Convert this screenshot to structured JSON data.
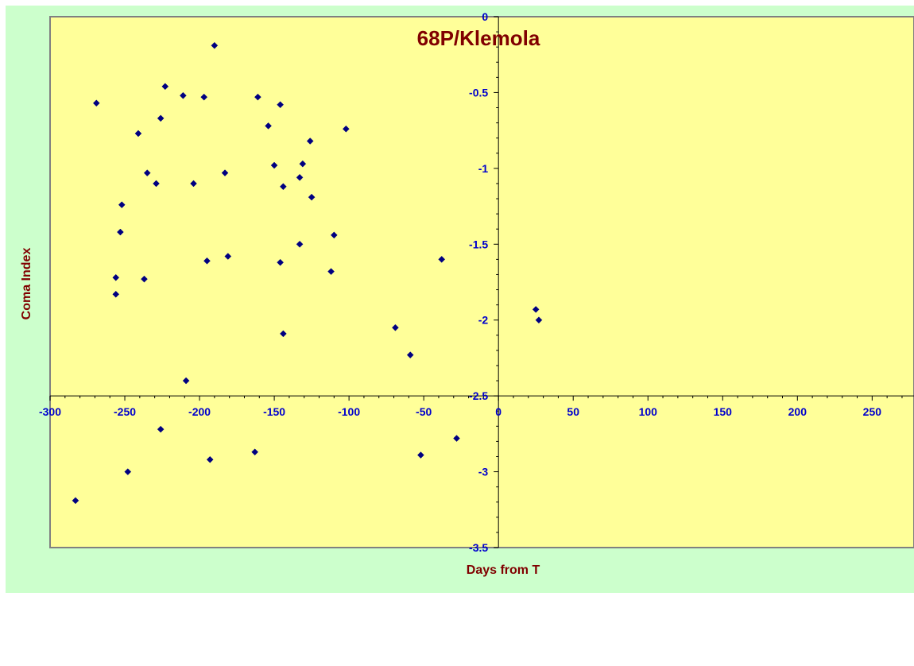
{
  "chart_data": {
    "type": "scatter",
    "title": "68P/Klemola",
    "xlabel": "Days from T",
    "ylabel": "Coma Index",
    "xlim": [
      -300,
      278
    ],
    "ylim": [
      -3.5,
      0
    ],
    "x_ticks": [
      -300,
      -250,
      -200,
      -150,
      -100,
      -50,
      0,
      50,
      100,
      150,
      200,
      250
    ],
    "y_ticks": [
      0,
      -0.5,
      -1,
      -1.5,
      -2,
      -2.5,
      -3,
      -3.5
    ],
    "grid": false,
    "legend": "none",
    "colors": {
      "background": "#ccffcc",
      "plot_area": "#ffff99",
      "marker": "#000080",
      "tick_label": "#0000cc",
      "title": "#800000"
    },
    "series": [
      {
        "x": [
          -190,
          -223,
          -211,
          -197,
          -161,
          -146,
          -269,
          -226,
          -154,
          -241,
          -102,
          -126,
          -150,
          -131,
          -235,
          -183,
          -133,
          -229,
          -204,
          -144,
          -125,
          -252,
          -253,
          -110,
          -133,
          -181,
          -195,
          -146,
          -38,
          -112,
          -256,
          -237,
          -256,
          25,
          27,
          -69,
          -144,
          -59,
          -209,
          -226,
          -28,
          -163,
          -193,
          -52,
          -248,
          -283
        ],
        "y": [
          -0.19,
          -0.46,
          -0.52,
          -0.53,
          -0.53,
          -0.58,
          -0.57,
          -0.67,
          -0.72,
          -0.77,
          -0.74,
          -0.82,
          -0.98,
          -0.97,
          -1.03,
          -1.03,
          -1.06,
          -1.1,
          -1.1,
          -1.12,
          -1.19,
          -1.24,
          -1.42,
          -1.44,
          -1.5,
          -1.58,
          -1.61,
          -1.62,
          -1.6,
          -1.68,
          -1.72,
          -1.73,
          -1.83,
          -1.93,
          -2.0,
          -2.05,
          -2.09,
          -2.23,
          -2.4,
          -2.72,
          -2.78,
          -2.87,
          -2.92,
          -2.89,
          -3.0,
          -3.19
        ]
      }
    ]
  }
}
